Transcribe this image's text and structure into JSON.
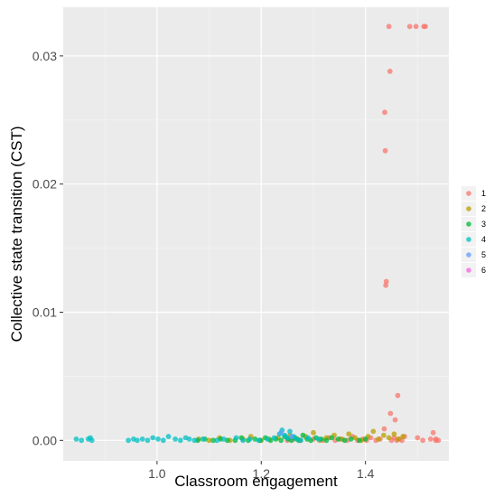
{
  "chart_data": {
    "type": "scatter",
    "title": "",
    "xlabel": "Classroom engagement",
    "ylabel": "Collective state transition (CST)",
    "xlim": [
      0.82,
      1.56
    ],
    "ylim": [
      -0.0016,
      0.0338
    ],
    "x_ticks": [
      1.0,
      1.2,
      1.4
    ],
    "x_tick_labels": [
      "1.0",
      "1.2",
      "1.4"
    ],
    "y_ticks": [
      0.0,
      0.01,
      0.02,
      0.03
    ],
    "y_tick_labels": [
      "0.00",
      "0.01",
      "0.02",
      "0.03"
    ],
    "grid": true,
    "background": "#ebebeb",
    "legend": {
      "position": "right",
      "entries": [
        "1",
        "2",
        "3",
        "4",
        "5",
        "6"
      ],
      "colors": [
        "#f8766d",
        "#b79f00",
        "#00ba38",
        "#00bfc4",
        "#619cff",
        "#f564e3"
      ]
    },
    "series": [
      {
        "name": "1",
        "color": "#f8766d",
        "points": [
          [
            1.445,
            0.0323
          ],
          [
            1.485,
            0.0323
          ],
          [
            1.497,
            0.0323
          ],
          [
            1.512,
            0.0323
          ],
          [
            1.515,
            0.0323
          ],
          [
            1.447,
            0.0288
          ],
          [
            1.437,
            0.0256
          ],
          [
            1.438,
            0.0226
          ],
          [
            1.44,
            0.0124
          ],
          [
            1.439,
            0.0121
          ],
          [
            1.462,
            0.0035
          ],
          [
            1.448,
            0.0021
          ],
          [
            1.457,
            0.0016
          ],
          [
            1.436,
            0.0009
          ],
          [
            1.53,
            0.0006
          ],
          [
            1.5,
            0.0002
          ],
          [
            1.535,
            0.0001
          ],
          [
            1.535,
            0.0
          ],
          [
            1.25,
            0.0
          ],
          [
            1.262,
            0.0001
          ],
          [
            1.275,
            0.0
          ],
          [
            1.3,
            0.0001
          ],
          [
            1.318,
            0.0
          ],
          [
            1.33,
            0.0002
          ],
          [
            1.342,
            0.0
          ],
          [
            1.352,
            0.0001
          ],
          [
            1.365,
            0.0
          ],
          [
            1.375,
            0.0003
          ],
          [
            1.385,
            0.0
          ],
          [
            1.395,
            0.0001
          ],
          [
            1.402,
            0.0
          ],
          [
            1.41,
            0.0002
          ],
          [
            1.42,
            0.0
          ],
          [
            1.428,
            0.0001
          ],
          [
            1.45,
            0.0
          ],
          [
            1.455,
            0.0002
          ],
          [
            1.46,
            0.0
          ],
          [
            1.465,
            0.0001
          ],
          [
            1.47,
            0.0
          ],
          [
            1.475,
            0.0003
          ],
          [
            1.51,
            0.0
          ],
          [
            1.525,
            0.0001
          ],
          [
            1.54,
            0.0
          ]
        ]
      },
      {
        "name": "2",
        "color": "#b79f00",
        "points": [
          [
            1.08,
            0.0001
          ],
          [
            1.1,
            0.0
          ],
          [
            1.12,
            0.0002
          ],
          [
            1.14,
            0.0
          ],
          [
            1.165,
            0.0001
          ],
          [
            1.18,
            0.0003
          ],
          [
            1.2,
            0.0
          ],
          [
            1.215,
            0.0001
          ],
          [
            1.232,
            0.0002
          ],
          [
            1.255,
            0.0004
          ],
          [
            1.27,
            0.0001
          ],
          [
            1.285,
            0.0003
          ],
          [
            1.3,
            0.0006
          ],
          [
            1.312,
            0.0
          ],
          [
            1.325,
            0.0002
          ],
          [
            1.34,
            0.0004
          ],
          [
            1.355,
            0.0001
          ],
          [
            1.368,
            0.0005
          ],
          [
            1.38,
            0.0002
          ],
          [
            1.392,
            0.0
          ],
          [
            1.405,
            0.0003
          ],
          [
            1.415,
            0.0007
          ],
          [
            1.425,
            0.0001
          ],
          [
            1.435,
            0.0004
          ],
          [
            1.445,
            0.0002
          ],
          [
            1.455,
            0.0005
          ],
          [
            1.463,
            0.0001
          ],
          [
            1.472,
            0.0003
          ]
        ]
      },
      {
        "name": "3",
        "color": "#00ba38",
        "points": [
          [
            1.078,
            0.0
          ],
          [
            1.092,
            0.0001
          ],
          [
            1.108,
            0.0
          ],
          [
            1.122,
            0.0001
          ],
          [
            1.135,
            0.0
          ],
          [
            1.15,
            0.0
          ],
          [
            1.162,
            0.0002
          ],
          [
            1.175,
            0.0
          ],
          [
            1.188,
            0.0001
          ],
          [
            1.198,
            0.0
          ],
          [
            1.208,
            0.0002
          ],
          [
            1.218,
            0.0
          ],
          [
            1.228,
            0.0001
          ],
          [
            1.238,
            0.0
          ],
          [
            1.245,
            0.0003
          ],
          [
            1.252,
            0.0001
          ],
          [
            1.258,
            0.0
          ],
          [
            1.265,
            0.0002
          ],
          [
            1.272,
            0.0
          ],
          [
            1.28,
            0.0004
          ],
          [
            1.288,
            0.0001
          ],
          [
            1.295,
            0.0
          ],
          [
            1.305,
            0.0002
          ],
          [
            1.315,
            0.0001
          ],
          [
            1.325,
            0.0
          ],
          [
            1.335,
            0.0002
          ],
          [
            1.348,
            0.0001
          ],
          [
            1.36,
            0.0
          ],
          [
            1.372,
            0.0001
          ],
          [
            1.388,
            0.0
          ],
          [
            1.4,
            0.0001
          ]
        ]
      },
      {
        "name": "4",
        "color": "#00bfc4",
        "points": [
          [
            0.845,
            0.0001
          ],
          [
            0.855,
            0.0
          ],
          [
            0.868,
            0.0001
          ],
          [
            0.872,
            0.0002
          ],
          [
            0.875,
            0.0
          ],
          [
            0.945,
            0.0
          ],
          [
            0.955,
            0.0001
          ],
          [
            0.962,
            0.0
          ],
          [
            0.972,
            0.0001
          ],
          [
            0.982,
            0.0
          ],
          [
            0.992,
            0.0002
          ],
          [
            1.002,
            0.0001
          ],
          [
            1.012,
            0.0
          ],
          [
            1.022,
            0.0003
          ],
          [
            1.035,
            0.0001
          ],
          [
            1.045,
            0.0
          ],
          [
            1.055,
            0.0002
          ],
          [
            1.062,
            0.0001
          ],
          [
            1.072,
            0.0
          ],
          [
            1.088,
            0.0001
          ],
          [
            1.115,
            0.0
          ],
          [
            1.128,
            0.0001
          ],
          [
            1.152,
            0.0002
          ],
          [
            1.165,
            0.0
          ],
          [
            1.178,
            0.0001
          ],
          [
            1.195,
            0.0
          ],
          [
            1.212,
            0.0001
          ],
          [
            1.225,
            0.0002
          ],
          [
            1.235,
            0.0005
          ],
          [
            1.24,
            0.0008
          ],
          [
            1.245,
            0.0004
          ],
          [
            1.25,
            0.0002
          ],
          [
            1.255,
            0.0007
          ],
          [
            1.262,
            0.0003
          ],
          [
            1.268,
            0.0001
          ],
          [
            1.276,
            0.0
          ],
          [
            1.29,
            0.0002
          ],
          [
            1.31,
            0.0001
          ]
        ]
      },
      {
        "name": "5",
        "color": "#619cff",
        "points": [
          [
            1.238,
            0.0006
          ],
          [
            1.258,
            0.0003
          ]
        ]
      },
      {
        "name": "6",
        "color": "#f564e3",
        "points": []
      }
    ]
  }
}
